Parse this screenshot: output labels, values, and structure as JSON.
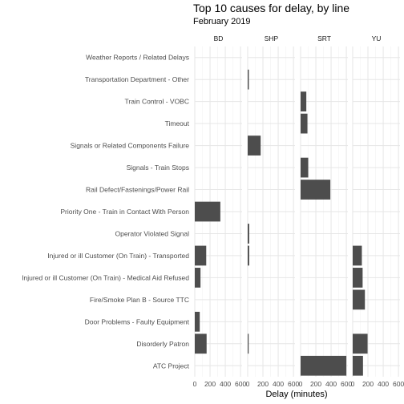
{
  "chart_data": {
    "type": "bar",
    "title": "Top 10 causes for delay, by line",
    "subtitle": "February 2019",
    "xlabel": "Delay (minutes)",
    "ylabel": "",
    "xlim": [
      0,
      620
    ],
    "xticks": [
      0,
      200,
      400,
      600
    ],
    "x_tick_labels": [
      "0",
      "200",
      "400",
      "600"
    ],
    "grid": true,
    "legend": "none",
    "bar_color": "#4d4d4d",
    "categories": [
      "Weather Reports / Related Delays",
      "Transportation Department - Other",
      "Train Control - VOBC",
      "Timeout",
      "Signals or Related Components Failure",
      "Signals - Train Stops",
      "Rail Defect/Fastenings/Power Rail",
      "Priority One - Train in Contact With Person",
      "Operator Violated Signal",
      "Injured or ill Customer (On Train) - Transported",
      "Injured or ill Customer (On Train) - Medical Aid Refused",
      "Fire/Smoke Plan B - Source TTC",
      "Door Problems - Faulty Equipment",
      "Disorderly Patron",
      "ATC Project"
    ],
    "facets": [
      {
        "name": "BD",
        "values": [
          0,
          0,
          0,
          0,
          0,
          0,
          0,
          335,
          0,
          150,
          75,
          0,
          65,
          155,
          0
        ]
      },
      {
        "name": "SHP",
        "values": [
          0,
          15,
          0,
          0,
          170,
          0,
          0,
          0,
          20,
          20,
          0,
          0,
          0,
          10,
          0
        ]
      },
      {
        "name": "SRT",
        "values": [
          0,
          0,
          75,
          90,
          0,
          100,
          390,
          0,
          0,
          0,
          0,
          0,
          0,
          0,
          600
        ]
      },
      {
        "name": "YU",
        "values": [
          0,
          0,
          0,
          0,
          0,
          0,
          0,
          0,
          0,
          120,
          130,
          160,
          0,
          195,
          135
        ]
      }
    ]
  }
}
